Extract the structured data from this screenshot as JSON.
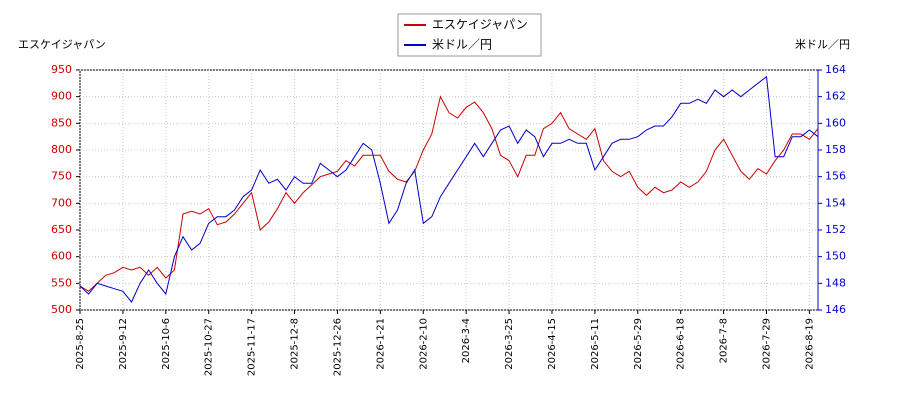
{
  "chart_data": {
    "type": "line",
    "y_label": "エスケイジャパン",
    "y2_label": "米ドル／円",
    "categories": [
      "2025-8-25",
      null,
      null,
      null,
      null,
      "2025-9-12",
      null,
      null,
      null,
      null,
      "2025-10-6",
      null,
      null,
      null,
      null,
      "2025-10-27",
      null,
      null,
      null,
      null,
      "2025-11-17",
      null,
      null,
      null,
      null,
      "2025-12-8",
      null,
      null,
      null,
      null,
      "2025-12-26",
      null,
      null,
      null,
      null,
      "2026-1-21",
      null,
      null,
      null,
      null,
      "2026-2-10",
      null,
      null,
      null,
      null,
      "2026-3-4",
      null,
      null,
      null,
      null,
      "2026-3-25",
      null,
      null,
      null,
      null,
      "2026-4-15",
      null,
      null,
      null,
      null,
      "2026-5-11",
      null,
      null,
      null,
      null,
      "2026-5-29",
      null,
      null,
      null,
      null,
      "2026-6-18",
      null,
      null,
      null,
      null,
      "2026-7-8",
      null,
      null,
      null,
      null,
      "2026-7-29",
      null,
      null,
      null,
      null,
      "2026-8-19",
      null
    ],
    "series": [
      {
        "name": "エスケイジャパン",
        "color": "#cc0000",
        "axis": "y",
        "values": [
          545,
          535,
          550,
          565,
          570,
          580,
          575,
          580,
          565,
          580,
          560,
          575,
          680,
          685,
          680,
          690,
          660,
          665,
          680,
          700,
          720,
          650,
          665,
          690,
          720,
          700,
          720,
          735,
          750,
          755,
          760,
          780,
          770,
          790,
          790,
          790,
          760,
          745,
          740,
          760,
          800,
          830,
          900,
          870,
          860,
          880,
          890,
          870,
          840,
          790,
          780,
          750,
          790,
          790,
          840,
          850,
          870,
          840,
          830,
          820,
          840,
          780,
          760,
          750,
          760,
          730,
          715,
          730,
          720,
          725,
          740,
          730,
          740,
          760,
          800,
          820,
          790,
          760,
          745,
          765,
          755,
          780,
          800,
          830,
          830,
          820,
          840
        ]
      },
      {
        "name": "米ドル／円",
        "color": "#0000cc",
        "axis": "y2",
        "values": [
          147.8,
          147.2,
          148,
          147.8,
          147.6,
          147.4,
          146.6,
          148,
          149,
          148,
          147.2,
          150,
          151.5,
          150.5,
          151,
          152.5,
          153,
          153,
          153.5,
          154.5,
          155,
          156.5,
          155.5,
          155.8,
          155,
          156,
          155.5,
          155.5,
          157,
          156.5,
          156,
          156.5,
          157.5,
          158.5,
          158,
          155.5,
          152.5,
          153.5,
          155.5,
          156.5,
          152.5,
          153,
          154.5,
          155.5,
          156.5,
          157.5,
          158.5,
          157.5,
          158.5,
          159.5,
          159.8,
          158.5,
          159.5,
          159,
          157.5,
          158.5,
          158.5,
          158.8,
          158.5,
          158.5,
          156.5,
          157.5,
          158.5,
          158.8,
          158.8,
          159,
          159.5,
          159.8,
          159.8,
          160.5,
          161.5,
          161.5,
          161.8,
          161.5,
          162.5,
          162,
          162.5,
          162,
          162.5,
          163,
          163.5,
          157.5,
          157.5,
          159,
          159,
          159.5,
          159
        ]
      }
    ],
    "ylim": [
      500,
      950
    ],
    "yticks": [
      500,
      550,
      600,
      650,
      700,
      750,
      800,
      850,
      900,
      950
    ],
    "y2lim": [
      146,
      164
    ],
    "y2ticks": [
      146,
      148,
      150,
      152,
      154,
      156,
      158,
      160,
      162,
      164
    ],
    "grid": true,
    "legend": "top"
  }
}
